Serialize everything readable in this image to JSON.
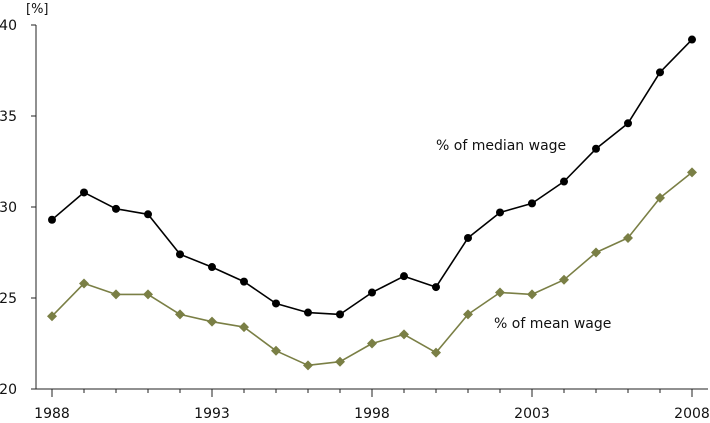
{
  "chart_data": {
    "type": "line",
    "title": "",
    "xlabel": "",
    "ylabel": "[%]",
    "x": [
      1988,
      1989,
      1990,
      1991,
      1992,
      1993,
      1994,
      1995,
      1996,
      1997,
      1998,
      1999,
      2000,
      2001,
      2002,
      2003,
      2004,
      2005,
      2006,
      2007,
      2008
    ],
    "xticks": [
      "1988",
      "1993",
      "1998",
      "2003",
      "2008"
    ],
    "ylim": [
      20,
      40
    ],
    "yticks": [
      "20",
      "25",
      "30",
      "35",
      "40"
    ],
    "grid": false,
    "legend": "none",
    "series": [
      {
        "name": "% of median wage",
        "marker": "circle",
        "color": "#000000",
        "values": [
          29.3,
          30.8,
          29.9,
          29.6,
          27.4,
          26.7,
          25.9,
          24.7,
          24.2,
          24.1,
          25.3,
          26.2,
          25.6,
          28.3,
          29.7,
          30.2,
          31.4,
          33.2,
          34.6,
          37.4,
          39.2
        ]
      },
      {
        "name": "% of mean wage",
        "marker": "diamond",
        "color": "#7a7f45",
        "values": [
          24.0,
          25.8,
          25.2,
          25.2,
          24.1,
          23.7,
          23.4,
          22.1,
          21.3,
          21.5,
          22.5,
          23.0,
          22.0,
          24.1,
          25.3,
          25.2,
          26.0,
          27.5,
          28.3,
          30.5,
          31.9
        ]
      }
    ]
  }
}
